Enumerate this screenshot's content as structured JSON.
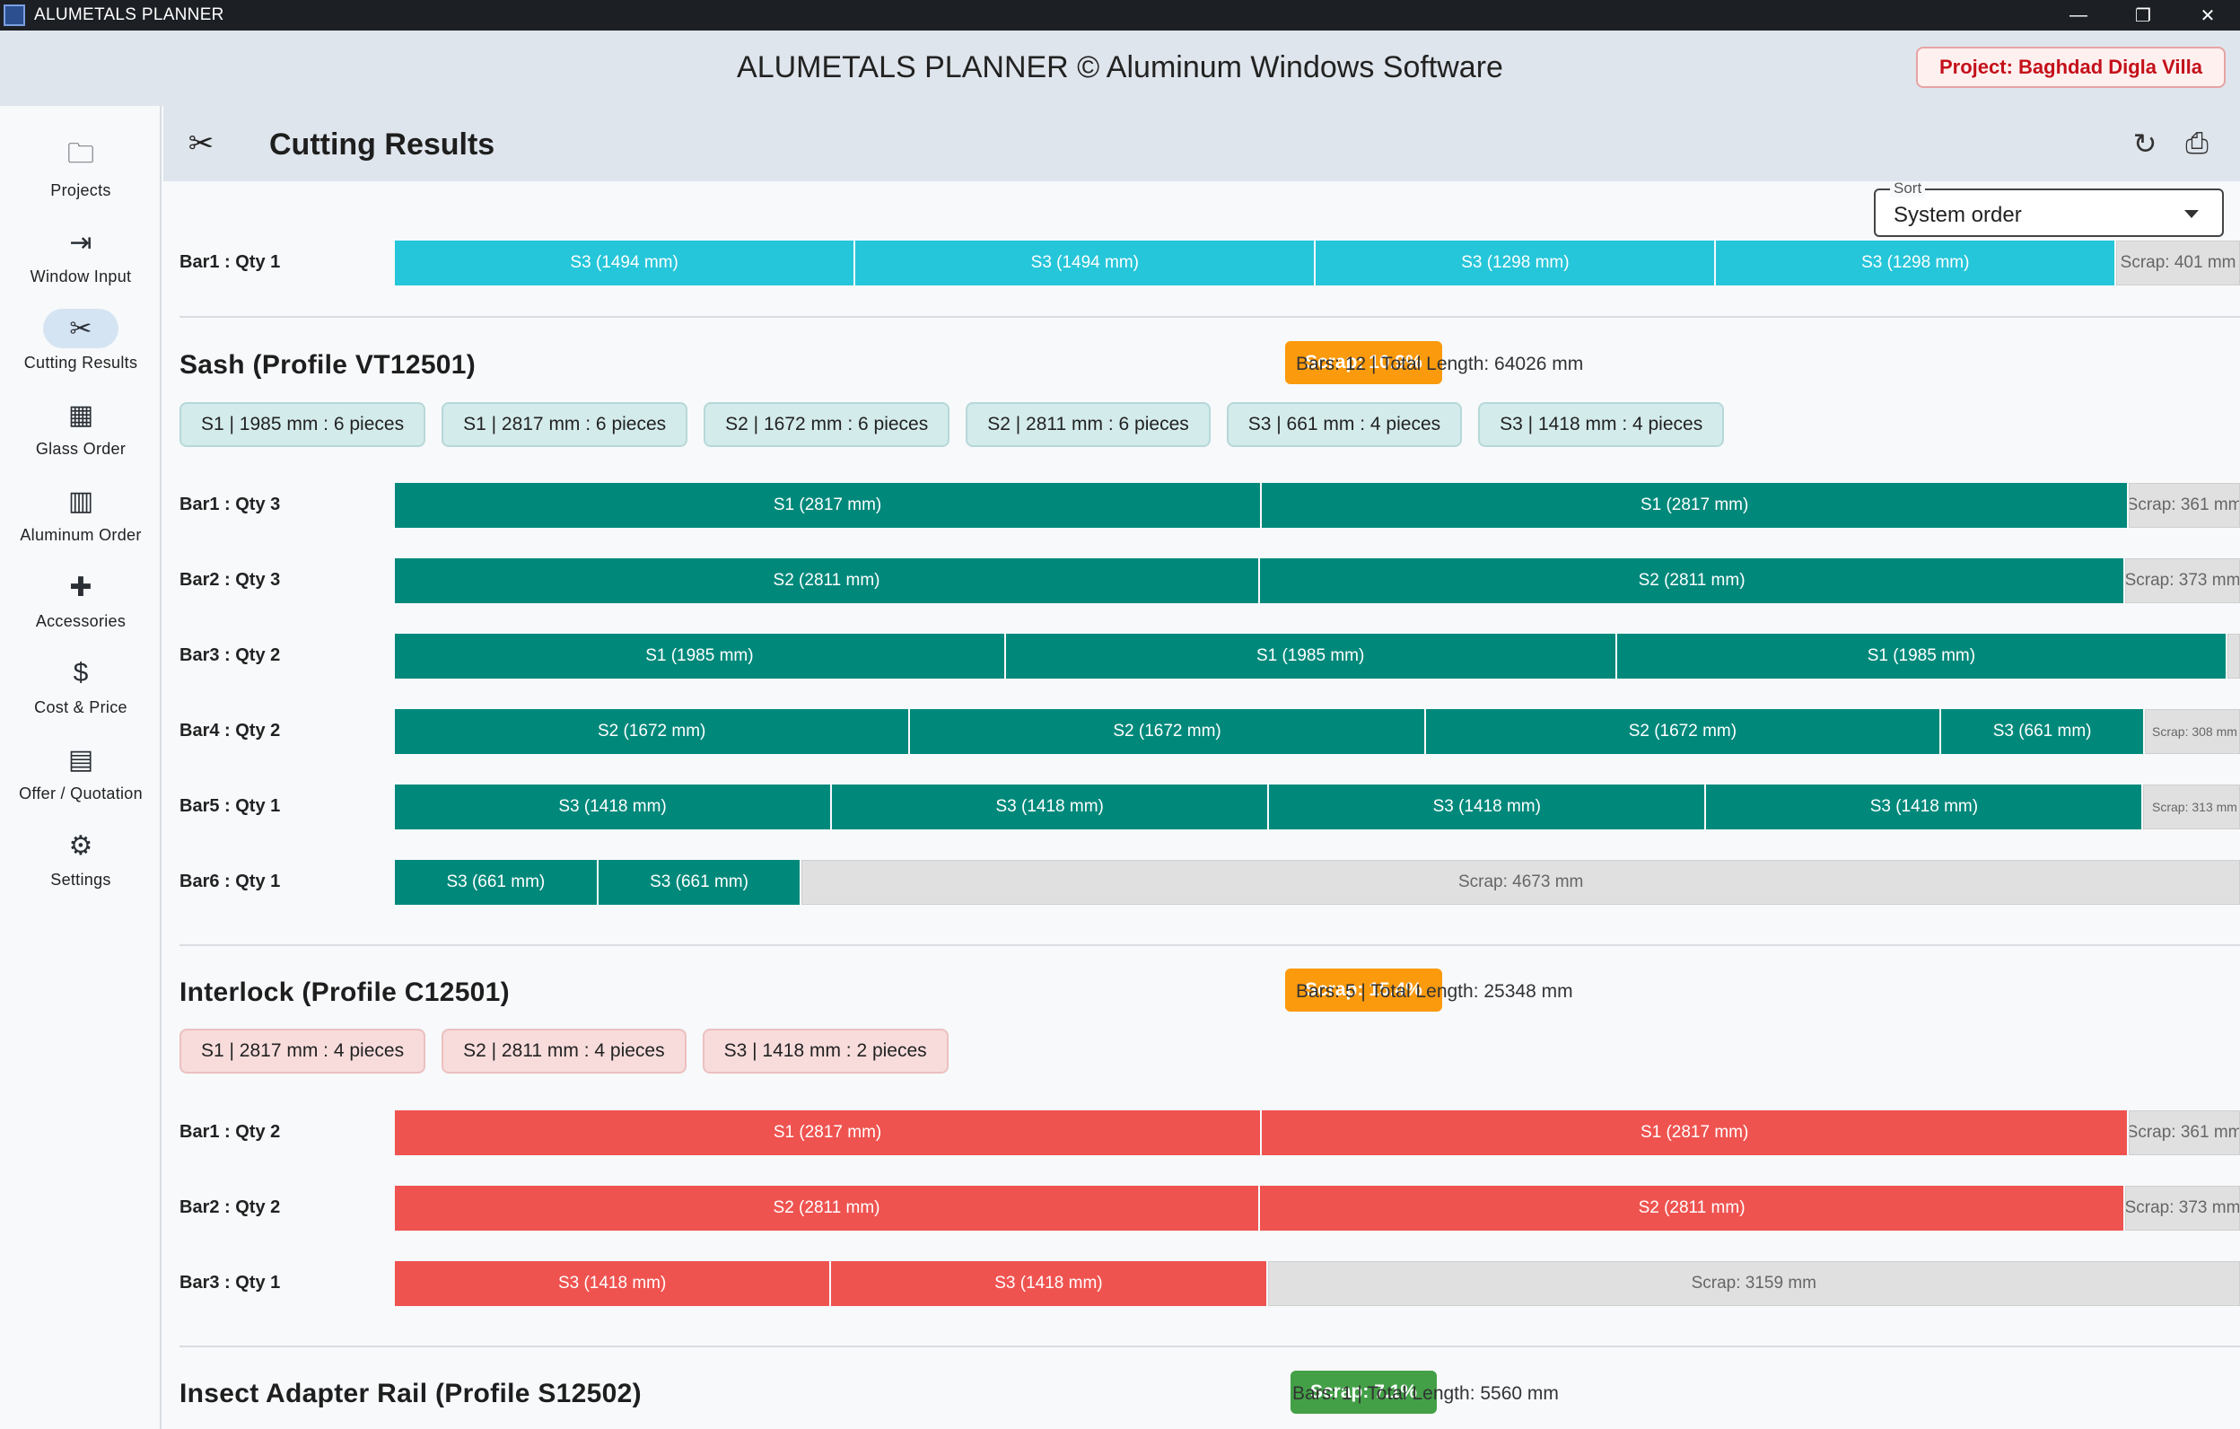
{
  "window": {
    "title": "ALUMETALS PLANNER",
    "minimize": "—",
    "maximize": "❐",
    "close": "✕"
  },
  "header": {
    "app_heading": "ALUMETALS PLANNER © Aluminum Windows Software",
    "project_badge": "Project: Baghdad Digla Villa"
  },
  "sidebar": {
    "items": [
      {
        "label": "Projects",
        "icon": "folder-icon",
        "glyph": "🗀"
      },
      {
        "label": "Window Input",
        "icon": "input-icon",
        "glyph": "⇥"
      },
      {
        "label": "Cutting Results",
        "icon": "scissors-icon",
        "glyph": "✂",
        "active": true
      },
      {
        "label": "Glass Order",
        "icon": "grid-icon",
        "glyph": "▦"
      },
      {
        "label": "Aluminum Order",
        "icon": "chart-icon",
        "glyph": "▥"
      },
      {
        "label": "Accessories",
        "icon": "puzzle-icon",
        "glyph": "✚"
      },
      {
        "label": "Cost & Price",
        "icon": "dollar-icon",
        "glyph": "$"
      },
      {
        "label": "Offer / Quotation",
        "icon": "receipt-icon",
        "glyph": "▤"
      },
      {
        "label": "Settings",
        "icon": "gear-icon",
        "glyph": "⚙"
      }
    ]
  },
  "page": {
    "title": "Cutting Results",
    "title_glyph": "✂",
    "refresh_glyph": "↻",
    "pdf_glyph": "⎙"
  },
  "sort": {
    "label": "Sort",
    "value": "System order"
  },
  "colors": {
    "top": "#26c6da",
    "sash": "#00897b",
    "interlock": "#ef5350",
    "scrap_orange": "#fb9a0d",
    "scrap_green": "#43a047"
  },
  "top_bars": [
    {
      "label": "Bar1 : Qty 1",
      "stock": 5984,
      "pieces": [
        {
          "text": "S3 (1494 mm)",
          "len": 1494
        },
        {
          "text": "S3 (1494 mm)",
          "len": 1494
        },
        {
          "text": "S3 (1298 mm)",
          "len": 1298
        },
        {
          "text": "S3 (1298 mm)",
          "len": 1298
        }
      ],
      "scrap": {
        "text": "Scrap: 401 mm",
        "len": 401
      }
    }
  ],
  "sash": {
    "title": "Sash (Profile VT12501)",
    "scrap_badge": "Scrap: 10.9%",
    "stats": "Bars: 12  |  Total Length: 64026 mm",
    "chips": [
      "S1 | 1985 mm : 6 pieces",
      "S1 | 2817 mm : 6 pieces",
      "S2 | 1672 mm : 6 pieces",
      "S2 | 2811 mm : 6 pieces",
      "S3 | 661 mm : 4 pieces",
      "S3 | 1418 mm : 4 pieces"
    ],
    "bars": [
      {
        "label": "Bar1 : Qty 3",
        "pieces": [
          {
            "text": "S1 (2817 mm)",
            "len": 2817
          },
          {
            "text": "S1 (2817 mm)",
            "len": 2817
          }
        ],
        "scrap": {
          "text": "Scrap: 361 mm",
          "len": 361
        }
      },
      {
        "label": "Bar2 : Qty 3",
        "pieces": [
          {
            "text": "S2 (2811 mm)",
            "len": 2811
          },
          {
            "text": "S2 (2811 mm)",
            "len": 2811
          }
        ],
        "scrap": {
          "text": "Scrap: 373 mm",
          "len": 373
        }
      },
      {
        "label": "Bar3 : Qty 2",
        "pieces": [
          {
            "text": "S1 (1985 mm)",
            "len": 1985
          },
          {
            "text": "S1 (1985 mm)",
            "len": 1985
          },
          {
            "text": "S1 (1985 mm)",
            "len": 1985
          }
        ],
        "scrap": {
          "text": "",
          "len": 40
        }
      },
      {
        "label": "Bar4 : Qty 2",
        "pieces": [
          {
            "text": "S2 (1672 mm)",
            "len": 1672
          },
          {
            "text": "S2 (1672 mm)",
            "len": 1672
          },
          {
            "text": "S2 (1672 mm)",
            "len": 1672
          },
          {
            "text": "S3 (661 mm)",
            "len": 661
          }
        ],
        "scrap": {
          "text": "Scrap: 308 mm",
          "len": 308
        }
      },
      {
        "label": "Bar5 : Qty 1",
        "pieces": [
          {
            "text": "S3 (1418 mm)",
            "len": 1418
          },
          {
            "text": "S3 (1418 mm)",
            "len": 1418
          },
          {
            "text": "S3 (1418 mm)",
            "len": 1418
          },
          {
            "text": "S3 (1418 mm)",
            "len": 1418
          }
        ],
        "scrap": {
          "text": "Scrap: 313 mm",
          "len": 313
        }
      },
      {
        "label": "Bar6 : Qty 1",
        "pieces": [
          {
            "text": "S3 (661 mm)",
            "len": 661
          },
          {
            "text": "S3 (661 mm)",
            "len": 661
          }
        ],
        "scrap": {
          "text": "Scrap: 4673 mm",
          "len": 4673
        }
      }
    ]
  },
  "interlock": {
    "title": "Interlock (Profile C12501)",
    "scrap_badge": "Scrap: 15.4%",
    "stats": "Bars: 5  |  Total Length: 25348 mm",
    "chips": [
      "S1 | 2817 mm : 4 pieces",
      "S2 | 2811 mm : 4 pieces",
      "S3 | 1418 mm : 2 pieces"
    ],
    "bars": [
      {
        "label": "Bar1 : Qty 2",
        "pieces": [
          {
            "text": "S1 (2817 mm)",
            "len": 2817
          },
          {
            "text": "S1 (2817 mm)",
            "len": 2817
          }
        ],
        "scrap": {
          "text": "Scrap: 361 mm",
          "len": 361
        }
      },
      {
        "label": "Bar2 : Qty 2",
        "pieces": [
          {
            "text": "S2 (2811 mm)",
            "len": 2811
          },
          {
            "text": "S2 (2811 mm)",
            "len": 2811
          }
        ],
        "scrap": {
          "text": "Scrap: 373 mm",
          "len": 373
        }
      },
      {
        "label": "Bar3 : Qty 1",
        "pieces": [
          {
            "text": "S3 (1418 mm)",
            "len": 1418
          },
          {
            "text": "S3 (1418 mm)",
            "len": 1418
          }
        ],
        "scrap": {
          "text": "Scrap: 3159 mm",
          "len": 3159
        }
      }
    ]
  },
  "insect": {
    "title": "Insect Adapter Rail (Profile S12502)",
    "scrap_badge": "Scrap: 7.1%",
    "stats": "Bars: 1  |  Total Length: 5560 mm"
  }
}
